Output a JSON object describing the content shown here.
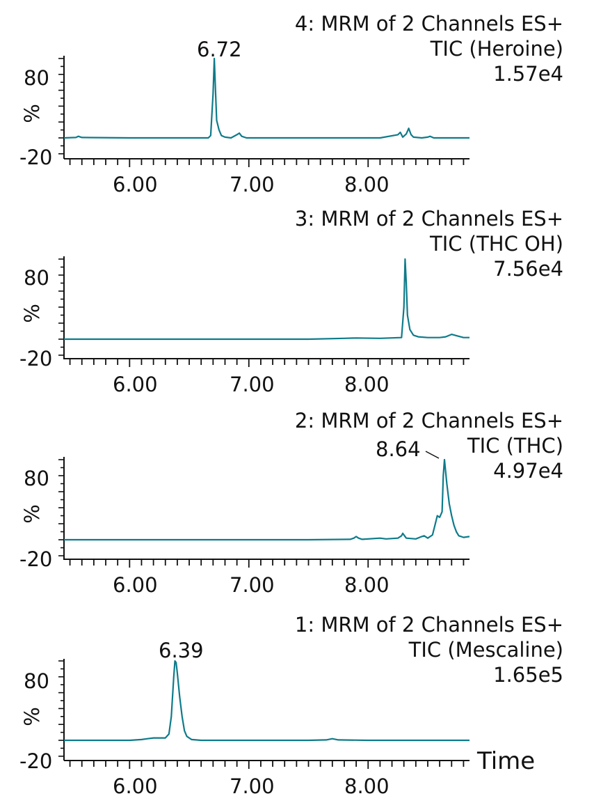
{
  "style": {
    "trace_color": "#0e7b8a",
    "axis_color": "#111111"
  },
  "time_label": "Time",
  "chart_data": [
    {
      "type": "line",
      "channel": "4: MRM of 2 Channels ES+",
      "compound": "TIC (Heroine)",
      "intensity": "1.57e4",
      "ylabel": "%",
      "ytick_labels": [
        "80",
        "-20"
      ],
      "xtick_labels": [
        "6.00",
        "7.00",
        "8.00"
      ],
      "xlim": [
        5.45,
        8.85
      ],
      "ylim": [
        -20,
        100
      ],
      "peak_label": "6.72",
      "x": [
        5.45,
        5.55,
        5.57,
        5.6,
        6.0,
        6.5,
        6.66,
        6.68,
        6.7,
        6.71,
        6.72,
        6.73,
        6.75,
        6.77,
        6.8,
        6.85,
        6.9,
        6.92,
        6.94,
        6.98,
        7.2,
        7.5,
        7.8,
        8.1,
        8.25,
        8.27,
        8.29,
        8.32,
        8.34,
        8.36,
        8.38,
        8.45,
        8.5,
        8.52,
        8.55,
        8.7,
        8.85
      ],
      "y": [
        0,
        0.5,
        2,
        0.5,
        0,
        0,
        0,
        3,
        55,
        100,
        60,
        22,
        10,
        3,
        1,
        0,
        4,
        6,
        2,
        0,
        0,
        0,
        0,
        0,
        4,
        7,
        1,
        5,
        12,
        4,
        1,
        0,
        1,
        2,
        0,
        0,
        0
      ]
    },
    {
      "type": "line",
      "channel": "3: MRM of 2 Channels ES+",
      "compound": "TIC (THC OH)",
      "intensity": "7.56e4",
      "ylabel": "%",
      "ytick_labels": [
        "80",
        "-20"
      ],
      "xtick_labels": [
        "6.00",
        "7.00",
        "8.00"
      ],
      "xlim": [
        5.45,
        8.85
      ],
      "ylim": [
        -20,
        100
      ],
      "x": [
        5.45,
        6.0,
        6.5,
        7.0,
        7.5,
        7.8,
        7.9,
        8.1,
        8.28,
        8.3,
        8.31,
        8.32,
        8.33,
        8.35,
        8.38,
        8.42,
        8.5,
        8.6,
        8.65,
        8.7,
        8.75,
        8.8,
        8.85
      ],
      "y": [
        0,
        0,
        0,
        0,
        0,
        1,
        1.5,
        1,
        2,
        40,
        100,
        70,
        30,
        12,
        5,
        3,
        2,
        2,
        3,
        6,
        4,
        2,
        2
      ]
    },
    {
      "type": "line",
      "channel": "2: MRM of 2 Channels ES+",
      "compound": "TIC (THC)",
      "intensity": "4.97e4",
      "ylabel": "%",
      "ytick_labels": [
        "80",
        "-20"
      ],
      "xtick_labels": [
        "6.00",
        "7.00",
        "8.00"
      ],
      "xlim": [
        5.45,
        8.85
      ],
      "ylim": [
        -20,
        100
      ],
      "peak_label": "8.64",
      "x": [
        5.45,
        6.0,
        6.5,
        7.0,
        7.5,
        7.85,
        7.88,
        7.9,
        7.92,
        7.95,
        8.1,
        8.15,
        8.25,
        8.28,
        8.29,
        8.32,
        8.4,
        8.45,
        8.47,
        8.5,
        8.54,
        8.56,
        8.58,
        8.6,
        8.62,
        8.63,
        8.64,
        8.66,
        8.68,
        8.7,
        8.72,
        8.74,
        8.76,
        8.78,
        8.8,
        8.85
      ],
      "y": [
        0,
        0,
        0,
        0,
        0,
        0.5,
        2,
        4,
        2,
        0.5,
        2,
        1,
        2,
        5,
        8,
        2,
        1,
        4,
        5,
        2,
        6,
        18,
        30,
        28,
        35,
        80,
        100,
        70,
        45,
        30,
        18,
        10,
        5,
        4,
        3,
        4
      ]
    },
    {
      "type": "line",
      "channel": "1: MRM of 2 Channels ES+",
      "compound": "TIC (Mescaline)",
      "intensity": "1.65e5",
      "ylabel": "%",
      "ytick_labels": [
        "80",
        "-20"
      ],
      "xtick_labels": [
        "6.00",
        "7.00",
        "8.00"
      ],
      "xlim": [
        5.45,
        8.85
      ],
      "ylim": [
        -20,
        100
      ],
      "peak_label": "6.39",
      "x": [
        5.45,
        5.8,
        6.0,
        6.1,
        6.15,
        6.2,
        6.3,
        6.33,
        6.35,
        6.37,
        6.38,
        6.39,
        6.4,
        6.42,
        6.44,
        6.46,
        6.48,
        6.52,
        6.6,
        7.0,
        7.5,
        7.65,
        7.7,
        7.75,
        8.0,
        8.5,
        8.85
      ],
      "y": [
        0,
        0,
        0,
        1,
        2,
        3,
        3,
        8,
        30,
        80,
        100,
        98,
        85,
        55,
        30,
        12,
        5,
        1,
        0,
        0,
        0,
        0.5,
        2,
        0.5,
        0,
        0,
        0
      ]
    }
  ]
}
